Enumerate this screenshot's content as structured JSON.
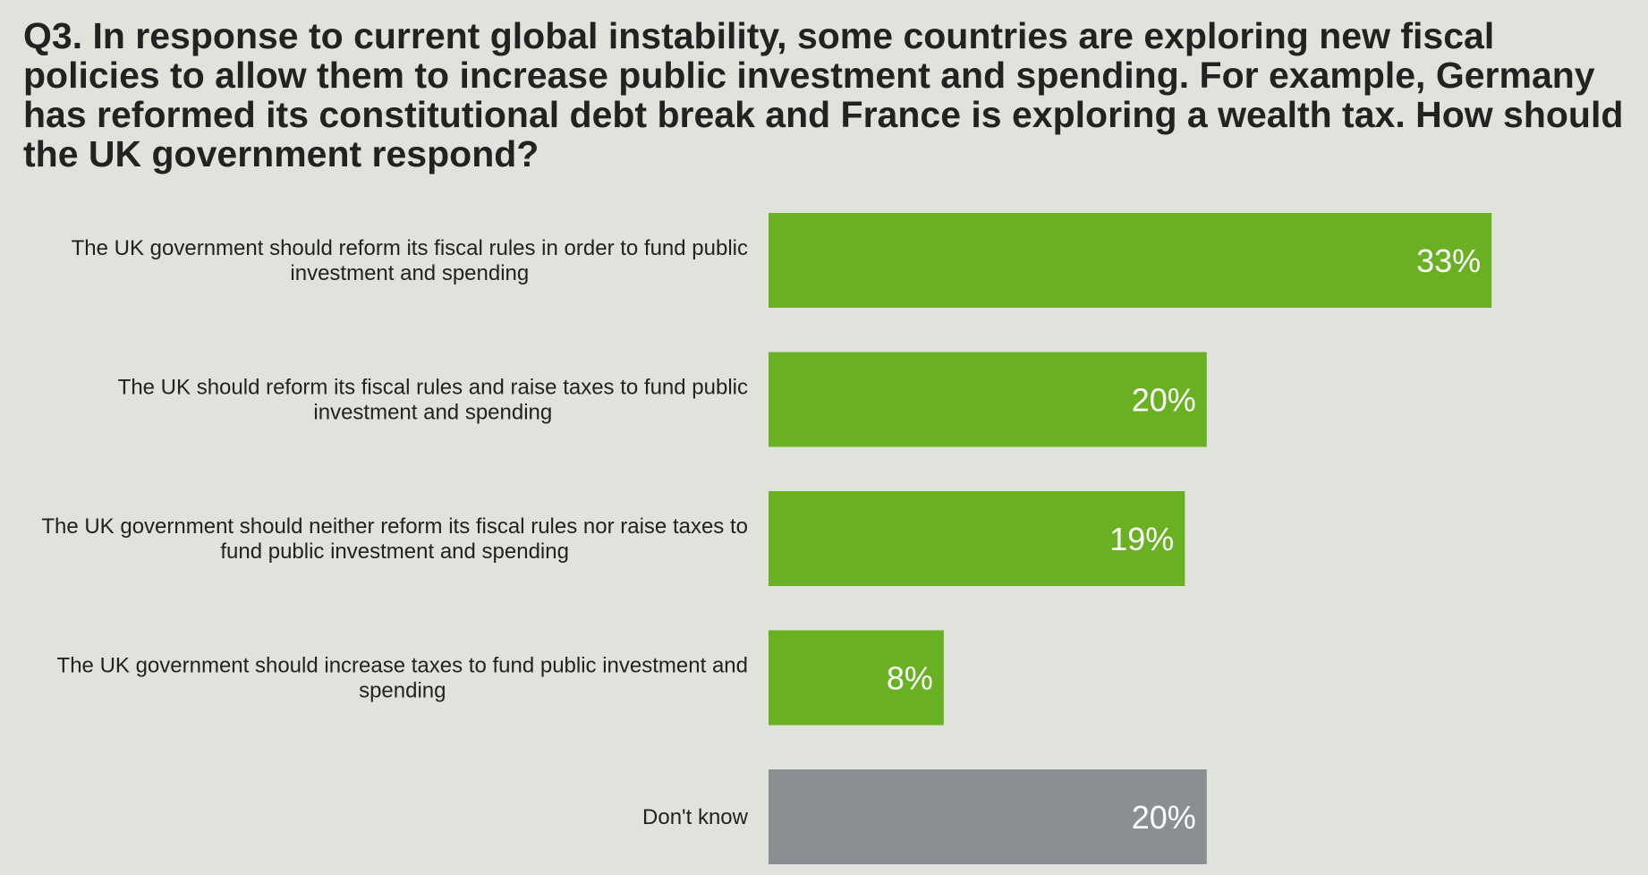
{
  "question": "Q3. In response to current global instability, some countries are exploring new fiscal policies to allow them to increase public investment and spending. For example, Germany has reformed its constitutional debt break and France is exploring a wealth tax. How should the UK government respond?",
  "chart_data": {
    "type": "bar",
    "orientation": "horizontal",
    "title": "Q3. In response to current global instability, some countries are exploring new fiscal policies to allow them to increase public investment and spending. For example, Germany has reformed its constitutional debt break and France is exploring a wealth tax. How should the UK government respond?",
    "xlabel": "",
    "ylabel": "",
    "xlim": [
      0,
      33
    ],
    "grid": false,
    "legend": "none",
    "unit": "%",
    "categories": [
      [
        "The UK government should reform its fiscal rules in order to fund public",
        "investment and spending"
      ],
      [
        "The UK should reform its fiscal rules and raise taxes to fund public",
        "investment and spending"
      ],
      [
        "The UK government should neither reform its fiscal rules nor raise taxes to",
        "fund public investment and spending"
      ],
      [
        "The UK government should increase taxes to fund public investment and",
        "spending"
      ],
      [
        "Don't know"
      ]
    ],
    "values": [
      33,
      20,
      19,
      8,
      20
    ],
    "value_labels": [
      "33%",
      "20%",
      "19%",
      "8%",
      "20%"
    ],
    "colors": [
      "#6ab023",
      "#6ab023",
      "#6ab023",
      "#6ab023",
      "#8b8e93"
    ]
  }
}
